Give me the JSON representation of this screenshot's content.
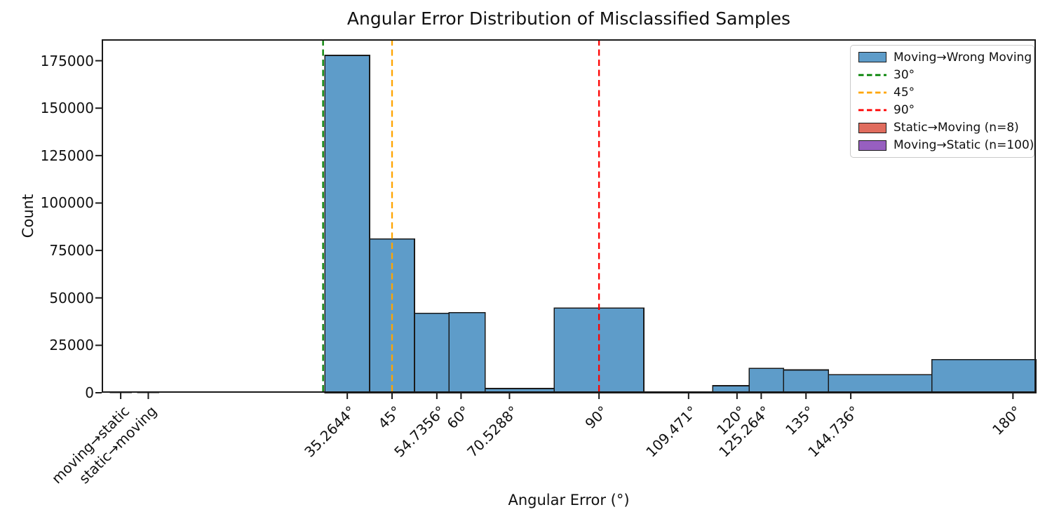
{
  "figure": {
    "title": "Angular Error Distribution of Misclassified Samples",
    "xlabel": "Angular Error (°)",
    "ylabel": "Count"
  },
  "chart_data": {
    "type": "bar",
    "subtype": "histogram",
    "title": "Angular Error Distribution of Misclassified Samples",
    "xlabel": "Angular Error (°)",
    "ylabel": "Count",
    "grid": false,
    "ylim": [
      0,
      186300
    ],
    "xlim_deg": [
      -18.1,
      185.0
    ],
    "yticks": [
      "0",
      "25000",
      "50000",
      "75000",
      "100000",
      "125000",
      "150000",
      "175000"
    ],
    "ytick_values": [
      0,
      25000,
      50000,
      75000,
      100000,
      125000,
      150000,
      175000
    ],
    "xticks": [
      {
        "label": "moving→static",
        "deg": -14
      },
      {
        "label": "static→moving",
        "deg": -8
      },
      {
        "label": "35.2644°",
        "deg": 35.2644
      },
      {
        "label": "45°",
        "deg": 45
      },
      {
        "label": "54.7356°",
        "deg": 54.7356
      },
      {
        "label": "60°",
        "deg": 60
      },
      {
        "label": "70.5288°",
        "deg": 70.5288
      },
      {
        "label": "90°",
        "deg": 90
      },
      {
        "label": "109.471°",
        "deg": 109.471
      },
      {
        "label": "120°",
        "deg": 120
      },
      {
        "label": "125.264°",
        "deg": 125.264
      },
      {
        "label": "135°",
        "deg": 135
      },
      {
        "label": "144.736°",
        "deg": 144.736
      },
      {
        "label": "180°",
        "deg": 180
      }
    ],
    "main_series": {
      "name": "Moving→Wrong Moving",
      "fill_color": "#5e9cc9",
      "edge_color": "#1a1a1a",
      "bins": [
        {
          "center_deg": 35.2644,
          "from_deg": 30.39,
          "to_deg": 40.13,
          "count": 177800
        },
        {
          "center_deg": 45.0,
          "from_deg": 40.13,
          "to_deg": 49.87,
          "count": 81000
        },
        {
          "center_deg": 54.7356,
          "from_deg": 49.87,
          "to_deg": 57.37,
          "count": 41900
        },
        {
          "center_deg": 60.0,
          "from_deg": 57.37,
          "to_deg": 65.26,
          "count": 42200
        },
        {
          "center_deg": 70.5288,
          "from_deg": 65.26,
          "to_deg": 80.26,
          "count": 2200
        },
        {
          "center_deg": 90.0,
          "from_deg": 80.26,
          "to_deg": 99.74,
          "count": 44600
        },
        {
          "center_deg": 109.471,
          "from_deg": 99.74,
          "to_deg": 114.74,
          "count": 500
        },
        {
          "center_deg": 120.0,
          "from_deg": 114.74,
          "to_deg": 122.63,
          "count": 3700
        },
        {
          "center_deg": 125.264,
          "from_deg": 122.63,
          "to_deg": 130.13,
          "count": 12900
        },
        {
          "center_deg": 135.0,
          "from_deg": 130.13,
          "to_deg": 139.87,
          "count": 12000
        },
        {
          "center_deg": 144.736,
          "from_deg": 139.87,
          "to_deg": 162.37,
          "count": 9500
        },
        {
          "center_deg": 180.0,
          "from_deg": 162.37,
          "to_deg": 197.63,
          "count": 17500
        }
      ]
    },
    "category_series": [
      {
        "name": "Moving→Static (n=100)",
        "category": "moving→static",
        "deg": -14,
        "half_width_deg": 2.3,
        "count": 100,
        "fill_color": "#975fc0",
        "edge_color": "#1a1a1a"
      },
      {
        "name": "Static→Moving (n=8)",
        "category": "static→moving",
        "deg": -8,
        "half_width_deg": 2.3,
        "count": 8,
        "fill_color": "#e06c5e",
        "edge_color": "#1a1a1a"
      }
    ],
    "vlines": [
      {
        "label": "30°",
        "deg": 30,
        "color": "#008000",
        "style": "dashed"
      },
      {
        "label": "45°",
        "deg": 45,
        "color": "#ffa500",
        "style": "dashed"
      },
      {
        "label": "90°",
        "deg": 90,
        "color": "#ff0000",
        "style": "dashed"
      }
    ],
    "legend": {
      "position": "upper right",
      "entries": [
        {
          "swatch": "patch",
          "color": "#5e9cc9",
          "label": "Moving→Wrong Moving"
        },
        {
          "swatch": "dashed-line",
          "color": "#008000",
          "label": "30°"
        },
        {
          "swatch": "dashed-line",
          "color": "#ffa500",
          "label": "45°"
        },
        {
          "swatch": "dashed-line",
          "color": "#ff0000",
          "label": "90°"
        },
        {
          "swatch": "patch",
          "color": "#e06c5e",
          "label": "Static→Moving (n=8)"
        },
        {
          "swatch": "patch",
          "color": "#975fc0",
          "label": "Moving→Static (n=100)"
        }
      ]
    },
    "spine_color": "#1a1a1a"
  }
}
